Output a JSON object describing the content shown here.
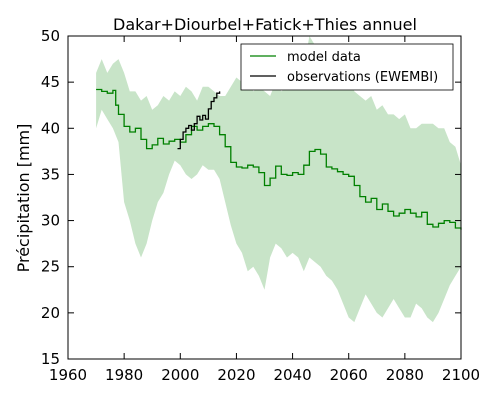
{
  "chart_data": {
    "type": "line",
    "title": "Dakar+Diourbel+Fatick+Thies annuel",
    "xlabel": "",
    "ylabel": "Précipitation [mm]",
    "xlim": [
      1960,
      2100
    ],
    "ylim": [
      15,
      50
    ],
    "xticks": [
      1960,
      1980,
      2000,
      2020,
      2040,
      2060,
      2080,
      2100
    ],
    "yticks": [
      15,
      20,
      25,
      30,
      35,
      40,
      45,
      50
    ],
    "grid": false,
    "legend_position": "top-right",
    "colors": {
      "model": "#008000",
      "band": "#c8e4c8",
      "obs": "#000000"
    },
    "series": [
      {
        "name": "model data",
        "kind": "line",
        "x": [
          1970,
          1972,
          1974,
          1976,
          1977,
          1978,
          1980,
          1982,
          1984,
          1986,
          1988,
          1990,
          1992,
          1994,
          1996,
          1998,
          2000,
          2002,
          2004,
          2006,
          2008,
          2010,
          2012,
          2014,
          2016,
          2018,
          2020,
          2022,
          2024,
          2026,
          2028,
          2030,
          2032,
          2034,
          2036,
          2038,
          2040,
          2042,
          2044,
          2046,
          2048,
          2050,
          2052,
          2054,
          2056,
          2058,
          2060,
          2062,
          2064,
          2066,
          2068,
          2070,
          2072,
          2074,
          2076,
          2078,
          2080,
          2082,
          2084,
          2086,
          2088,
          2090,
          2092,
          2094,
          2096,
          2098,
          2100
        ],
        "y": [
          44.2,
          44.0,
          43.8,
          44.1,
          42.5,
          41.5,
          40.2,
          39.6,
          40.0,
          38.8,
          37.8,
          38.2,
          38.9,
          38.3,
          38.6,
          38.8,
          38.5,
          39.3,
          40.2,
          39.8,
          40.2,
          40.5,
          40.2,
          39.3,
          38.0,
          36.3,
          35.8,
          35.7,
          36.0,
          35.8,
          35.2,
          33.8,
          34.6,
          35.9,
          35.0,
          34.9,
          35.2,
          35.0,
          36.0,
          37.5,
          37.7,
          37.2,
          35.8,
          35.6,
          35.3,
          35.0,
          34.8,
          33.8,
          32.6,
          32.0,
          32.4,
          31.2,
          31.8,
          31.0,
          30.5,
          30.8,
          31.2,
          30.8,
          30.4,
          30.9,
          29.6,
          29.3,
          29.7,
          30.0,
          29.8,
          29.2,
          29.0
        ]
      },
      {
        "name": "observations (EWEMBI)",
        "kind": "line",
        "x": [
          1999,
          2000,
          2001,
          2002,
          2003,
          2004,
          2005,
          2006,
          2007,
          2008,
          2009,
          2010,
          2011,
          2012,
          2013,
          2014
        ],
        "y": [
          37.8,
          38.8,
          39.6,
          40.0,
          40.3,
          39.8,
          40.5,
          41.3,
          40.9,
          41.4,
          41.0,
          42.1,
          42.9,
          43.3,
          43.8,
          44.0
        ]
      },
      {
        "kind": "band",
        "x": [
          1970,
          1972,
          1974,
          1976,
          1978,
          1980,
          1982,
          1984,
          1986,
          1988,
          1990,
          1992,
          1994,
          1996,
          1998,
          2000,
          2002,
          2004,
          2006,
          2008,
          2010,
          2012,
          2014,
          2016,
          2018,
          2020,
          2022,
          2024,
          2026,
          2028,
          2030,
          2032,
          2034,
          2036,
          2038,
          2040,
          2042,
          2044,
          2046,
          2048,
          2050,
          2052,
          2054,
          2056,
          2058,
          2060,
          2062,
          2064,
          2066,
          2068,
          2070,
          2072,
          2074,
          2076,
          2078,
          2080,
          2082,
          2084,
          2086,
          2088,
          2090,
          2092,
          2094,
          2096,
          2098,
          2100
        ],
        "upper": [
          46.0,
          47.5,
          46.0,
          47.0,
          47.5,
          46.0,
          44.0,
          44.0,
          43.0,
          43.5,
          42.0,
          42.5,
          43.5,
          43.0,
          44.0,
          43.5,
          44.5,
          44.0,
          43.0,
          44.5,
          44.5,
          44.0,
          43.5,
          43.5,
          44.5,
          45.5,
          45.0,
          45.5,
          44.0,
          44.5,
          44.0,
          43.5,
          45.0,
          44.0,
          44.5,
          45.0,
          45.5,
          46.5,
          50.0,
          49.0,
          47.0,
          46.0,
          45.5,
          45.0,
          46.5,
          46.0,
          44.0,
          43.5,
          43.0,
          43.5,
          42.0,
          42.5,
          41.5,
          41.5,
          41.0,
          41.5,
          40.0,
          40.0,
          40.5,
          40.5,
          40.5,
          40.0,
          40.0,
          38.5,
          38.0,
          36.0
        ],
        "lower": [
          40.0,
          42.0,
          41.0,
          40.0,
          38.5,
          32.0,
          30.0,
          27.5,
          26.0,
          27.5,
          30.0,
          32.0,
          33.0,
          35.0,
          36.5,
          36.0,
          35.0,
          34.5,
          35.0,
          36.0,
          35.5,
          35.5,
          34.5,
          32.0,
          29.5,
          27.5,
          26.5,
          24.5,
          25.0,
          24.0,
          22.5,
          26.0,
          27.5,
          27.0,
          26.0,
          26.5,
          26.0,
          24.5,
          26.0,
          25.5,
          25.0,
          24.0,
          23.5,
          22.5,
          21.0,
          19.5,
          19.0,
          20.5,
          22.0,
          21.0,
          20.0,
          19.5,
          20.5,
          21.5,
          20.5,
          19.5,
          19.5,
          21.0,
          20.5,
          19.5,
          19.0,
          20.0,
          21.5,
          23.0,
          24.0,
          25.0
        ]
      }
    ]
  }
}
